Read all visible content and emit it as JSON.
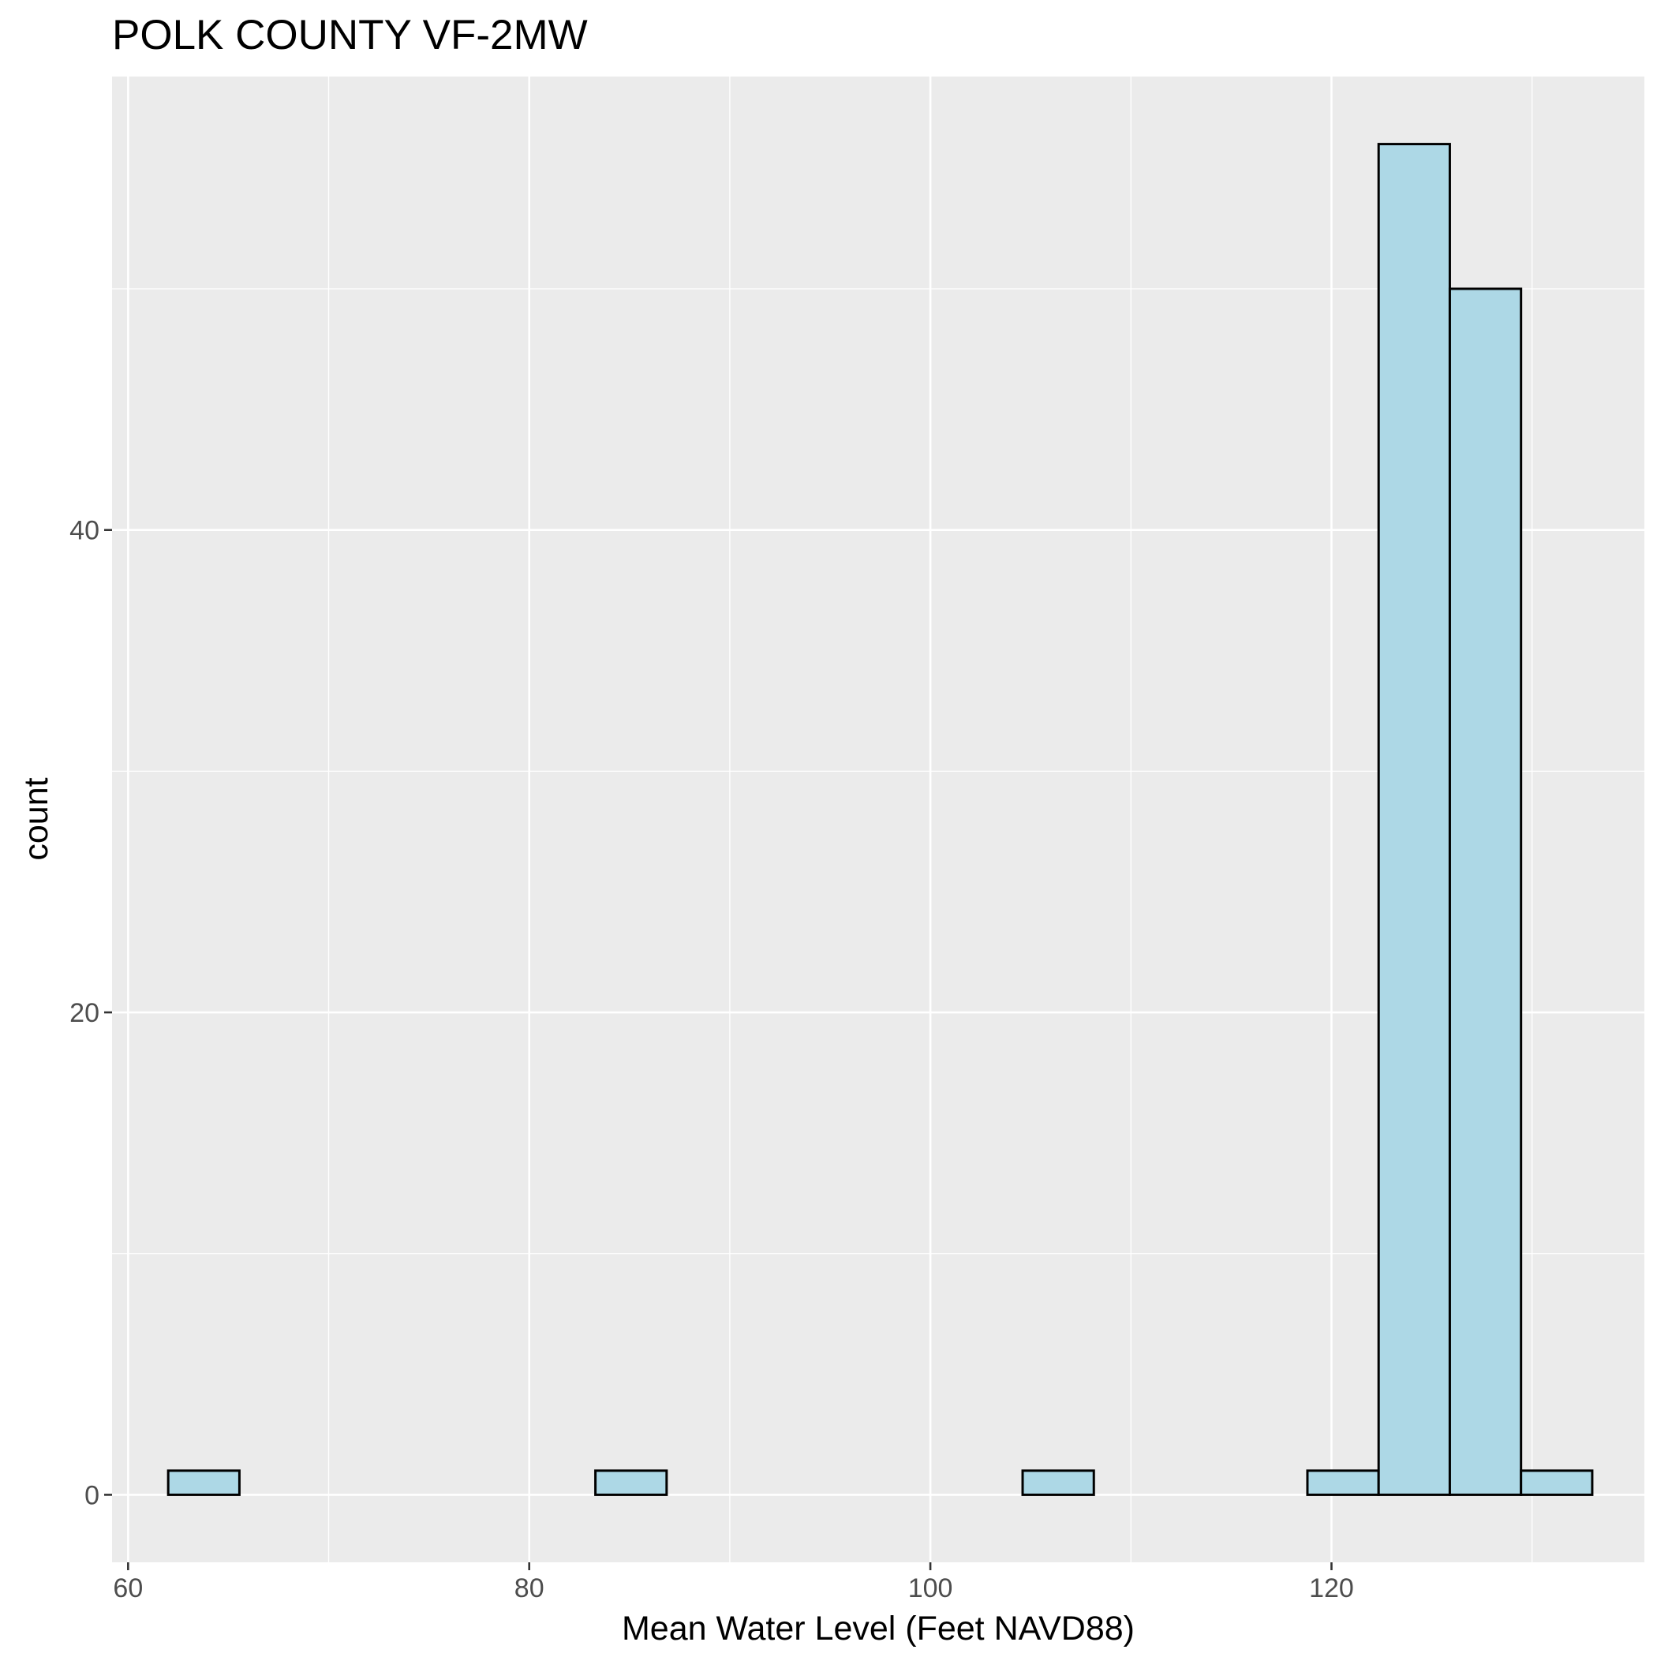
{
  "chart_data": {
    "type": "bar",
    "title": "POLK COUNTY VF-2MW",
    "xlabel": "Mean Water Level (Feet NAVD88)",
    "ylabel": "count",
    "xlim": [
      59.2,
      135.6
    ],
    "ylim": [
      -2.8,
      58.8
    ],
    "x_ticks": [
      60,
      80,
      100,
      120
    ],
    "y_ticks": [
      0,
      20,
      40
    ],
    "grid": true,
    "bar_fill": "#add8e6",
    "bar_outline": "#000000",
    "panel_background": "#ebebeb",
    "bins": [
      {
        "x0": 62.0,
        "x1": 65.55,
        "count": 1
      },
      {
        "x0": 65.55,
        "x1": 69.1,
        "count": 0
      },
      {
        "x0": 69.1,
        "x1": 72.65,
        "count": 0
      },
      {
        "x0": 72.65,
        "x1": 76.2,
        "count": 0
      },
      {
        "x0": 76.2,
        "x1": 79.75,
        "count": 0
      },
      {
        "x0": 79.75,
        "x1": 83.3,
        "count": 0
      },
      {
        "x0": 83.3,
        "x1": 86.85,
        "count": 1
      },
      {
        "x0": 86.85,
        "x1": 90.4,
        "count": 0
      },
      {
        "x0": 90.4,
        "x1": 93.95,
        "count": 0
      },
      {
        "x0": 93.95,
        "x1": 97.5,
        "count": 0
      },
      {
        "x0": 97.5,
        "x1": 101.05,
        "count": 0
      },
      {
        "x0": 101.05,
        "x1": 104.6,
        "count": 0
      },
      {
        "x0": 104.6,
        "x1": 108.15,
        "count": 1
      },
      {
        "x0": 108.15,
        "x1": 111.7,
        "count": 0
      },
      {
        "x0": 111.7,
        "x1": 115.25,
        "count": 0
      },
      {
        "x0": 115.25,
        "x1": 118.8,
        "count": 0
      },
      {
        "x0": 118.8,
        "x1": 122.35,
        "count": 1
      },
      {
        "x0": 122.35,
        "x1": 125.9,
        "count": 56
      },
      {
        "x0": 125.9,
        "x1": 129.45,
        "count": 50
      },
      {
        "x0": 129.45,
        "x1": 133.0,
        "count": 1
      }
    ]
  }
}
